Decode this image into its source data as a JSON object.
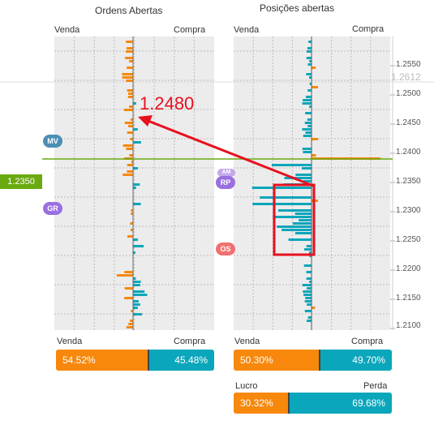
{
  "colors": {
    "orange": "#f7880c",
    "teal": "#0aa6bb",
    "green": "#6aaa10",
    "grid": "#ececec",
    "arrow": "#e8101e",
    "marker_mv": "#4c8fb5",
    "marker_gr": "#9a6fe0",
    "marker_rp": "#9a6fe0",
    "marker_os": "#f07070"
  },
  "left_panel": {
    "title": "Ordens Abertas",
    "sell_label": "Venda",
    "buy_label": "Compra"
  },
  "right_panel": {
    "title": "Posições abertas",
    "sell_label": "Venda",
    "buy_label": "Compra"
  },
  "price_axis": {
    "ticks": [
      "1.2550",
      "1.2500",
      "1.2450",
      "1.2400",
      "1.2350",
      "1.2300",
      "1.2250",
      "1.2200",
      "1.2150",
      "1.2100"
    ],
    "current_price_faded": "1.2612",
    "current_price_label": "1.2350"
  },
  "annotation": {
    "price": "1.2480"
  },
  "markers": {
    "mv": "MV",
    "gr": "GR",
    "rp": "RP",
    "rp_hidden": "AM",
    "os": "OS"
  },
  "orders_summary": {
    "sell_label": "Venda",
    "buy_label": "Compra",
    "sell_pct": "54.52%",
    "buy_pct": "45.48%",
    "sell_fraction": 0.5452
  },
  "positions_summary": {
    "sell_label": "Venda",
    "buy_label": "Compra",
    "sell_pct": "50.30%",
    "buy_pct": "49.70%",
    "sell_fraction": 0.503
  },
  "profit_summary": {
    "profit_label": "Lucro",
    "loss_label": "Perda",
    "profit_pct": "30.32%",
    "loss_pct": "69.68%",
    "profit_fraction": 0.3032
  }
}
